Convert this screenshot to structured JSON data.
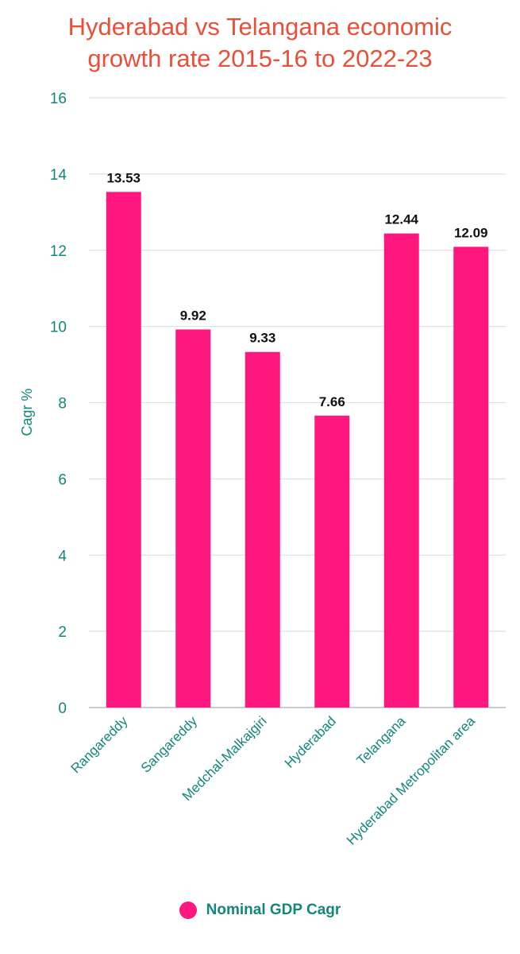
{
  "chart_data": {
    "type": "bar",
    "title_lines": [
      "Hyderabad vs Telangana economic",
      "growth rate 2015-16 to 2022-23"
    ],
    "xlabel": "",
    "ylabel": "Cagr %",
    "categories": [
      "Rangareddy",
      "Sangareddy",
      "Medchal-Malkajgiri",
      "Hyderabad",
      "Telangana",
      "Hyderabad Metropolitan area"
    ],
    "series": [
      {
        "name": "Nominal GDP Cagr",
        "values": [
          13.53,
          9.92,
          9.33,
          7.66,
          12.44,
          12.09
        ],
        "data_labels": [
          "13.53",
          "9.92",
          "9.33",
          "7.66",
          "12.44",
          "12.09"
        ]
      }
    ],
    "ylim": [
      0,
      16
    ],
    "yticks": [
      "0",
      "2",
      "4",
      "6",
      "8",
      "10",
      "12",
      "14",
      "16"
    ],
    "grid": true,
    "legend_position": "bottom"
  },
  "colors": {
    "bar": "#fe177f",
    "title": "#e8503a",
    "axis_text": "#12877a",
    "grid": "#dfe1e6",
    "value_label": "#111111"
  }
}
